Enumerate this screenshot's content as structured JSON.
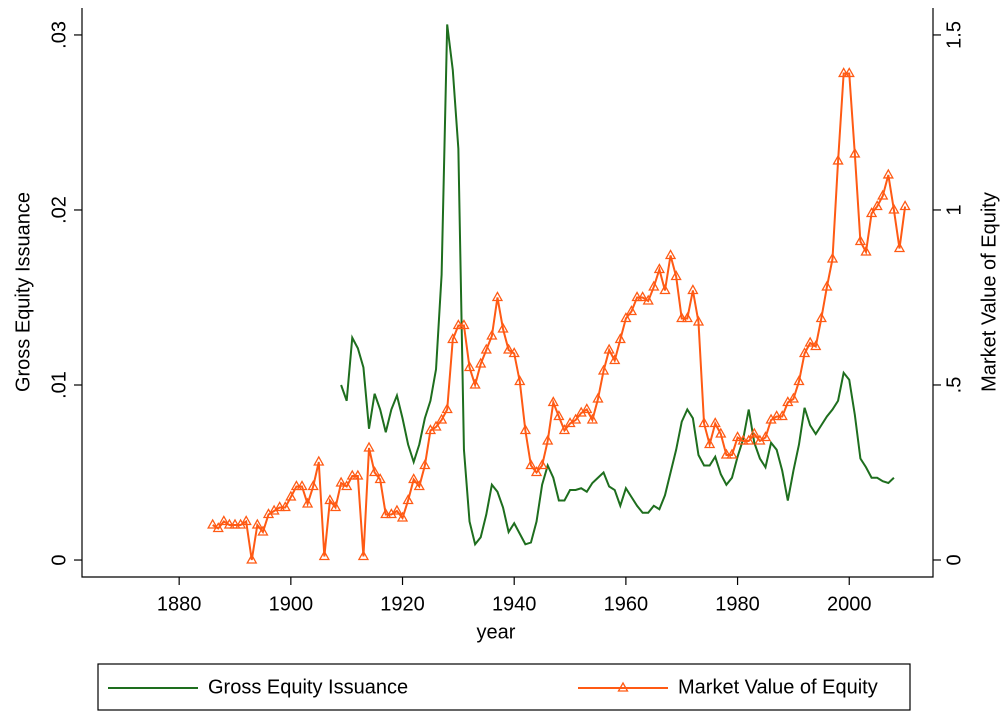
{
  "chart_data": {
    "type": "line",
    "x_label": "year",
    "y_label": "Gross Equity Issuance",
    "y2_label": "Market Value of Equity",
    "xlim": [
      1862.6,
      2015
    ],
    "xticks": [
      1880,
      1900,
      1920,
      1940,
      1960,
      1980,
      2000
    ],
    "ylim": [
      -0.00097,
      0.03154
    ],
    "yticks": [
      0,
      {
        "value": 0.01,
        "label": ".01"
      },
      {
        "value": 0.02,
        "label": ".02"
      },
      {
        "value": 0.03,
        "label": ".03"
      }
    ],
    "y2lim": [
      -0.0486,
      1.577
    ],
    "y2ticks": [
      0,
      {
        "value": 0.5,
        "label": ".5"
      },
      1,
      1.5
    ],
    "legend": "bottom",
    "series": [
      {
        "name": "Gross Equity Issuance",
        "color": "#1e6e1e",
        "axis": "y",
        "marker": "none",
        "x": [
          1909,
          1910,
          1911,
          1912,
          1913,
          1914,
          1915,
          1916,
          1917,
          1918,
          1919,
          1920,
          1921,
          1922,
          1923,
          1924,
          1925,
          1926,
          1927,
          1928,
          1929,
          1930,
          1931,
          1932,
          1933,
          1934,
          1935,
          1936,
          1937,
          1938,
          1939,
          1940,
          1941,
          1942,
          1943,
          1944,
          1945,
          1946,
          1947,
          1948,
          1949,
          1950,
          1951,
          1952,
          1953,
          1954,
          1955,
          1956,
          1957,
          1958,
          1959,
          1960,
          1961,
          1962,
          1963,
          1964,
          1965,
          1966,
          1967,
          1968,
          1969,
          1970,
          1971,
          1972,
          1973,
          1974,
          1975,
          1976,
          1977,
          1978,
          1979,
          1980,
          1981,
          1982,
          1983,
          1984,
          1985,
          1986,
          1987,
          1988,
          1989,
          1990,
          1991,
          1992,
          1993,
          1994,
          1995,
          1996,
          1997,
          1998,
          1999,
          2000,
          2001,
          2002,
          2003,
          2004,
          2005,
          2006,
          2007,
          2008
        ],
        "values": [
          0.01,
          0.0091,
          0.0127,
          0.0121,
          0.011,
          0.0075,
          0.0095,
          0.0086,
          0.0073,
          0.0086,
          0.0094,
          0.0081,
          0.0066,
          0.0056,
          0.0066,
          0.0081,
          0.0091,
          0.0109,
          0.0163,
          0.0306,
          0.028,
          0.0235,
          0.0063,
          0.0022,
          0.0009,
          0.0013,
          0.0026,
          0.0043,
          0.0039,
          0.003,
          0.0016,
          0.0021,
          0.0015,
          0.0009,
          0.001,
          0.0022,
          0.0043,
          0.0054,
          0.0047,
          0.0034,
          0.0034,
          0.004,
          0.004,
          0.0041,
          0.0039,
          0.0044,
          0.0047,
          0.005,
          0.0042,
          0.004,
          0.0031,
          0.0041,
          0.0036,
          0.0031,
          0.0027,
          0.0027,
          0.0031,
          0.0029,
          0.0037,
          0.005,
          0.0063,
          0.0079,
          0.0086,
          0.0081,
          0.006,
          0.0054,
          0.0054,
          0.0059,
          0.0049,
          0.0043,
          0.0047,
          0.0059,
          0.0069,
          0.0086,
          0.0067,
          0.0058,
          0.0053,
          0.0067,
          0.0063,
          0.0051,
          0.0034,
          0.0051,
          0.0066,
          0.0087,
          0.0077,
          0.0072,
          0.0077,
          0.0082,
          0.0086,
          0.0091,
          0.0107,
          0.0103,
          0.0083,
          0.0058,
          0.0053,
          0.0047,
          0.0047,
          0.0045,
          0.0044,
          0.0047
        ]
      },
      {
        "name": "Market Value of Equity",
        "color": "#ff5a14",
        "axis": "y2",
        "marker": "triangle",
        "x": [
          1886,
          1887,
          1888,
          1889,
          1890,
          1891,
          1892,
          1893,
          1894,
          1895,
          1896,
          1897,
          1898,
          1899,
          1900,
          1901,
          1902,
          1903,
          1904,
          1905,
          1906,
          1907,
          1908,
          1909,
          1910,
          1911,
          1912,
          1913,
          1914,
          1915,
          1916,
          1917,
          1918,
          1919,
          1920,
          1921,
          1922,
          1923,
          1924,
          1925,
          1926,
          1927,
          1928,
          1929,
          1930,
          1931,
          1932,
          1933,
          1934,
          1935,
          1936,
          1937,
          1938,
          1939,
          1940,
          1941,
          1942,
          1943,
          1944,
          1945,
          1946,
          1947,
          1948,
          1949,
          1950,
          1951,
          1952,
          1953,
          1954,
          1955,
          1956,
          1957,
          1958,
          1959,
          1960,
          1961,
          1962,
          1963,
          1964,
          1965,
          1966,
          1967,
          1968,
          1969,
          1970,
          1971,
          1972,
          1973,
          1974,
          1975,
          1976,
          1977,
          1978,
          1979,
          1980,
          1981,
          1982,
          1983,
          1984,
          1985,
          1986,
          1987,
          1988,
          1989,
          1990,
          1991,
          1992,
          1993,
          1994,
          1995,
          1996,
          1997,
          1998,
          1999,
          2000,
          2001,
          2002,
          2003,
          2004,
          2005,
          2006,
          2007,
          2008,
          2009,
          2010
        ],
        "values": [
          0.1,
          0.09,
          0.11,
          0.1,
          0.1,
          0.1,
          0.11,
          0.0,
          0.1,
          0.08,
          0.13,
          0.14,
          0.15,
          0.15,
          0.18,
          0.21,
          0.21,
          0.16,
          0.21,
          0.28,
          0.01,
          0.17,
          0.15,
          0.22,
          0.21,
          0.24,
          0.24,
          0.01,
          0.32,
          0.25,
          0.23,
          0.13,
          0.13,
          0.14,
          0.12,
          0.17,
          0.23,
          0.21,
          0.27,
          0.37,
          0.38,
          0.4,
          0.43,
          0.63,
          0.67,
          0.67,
          0.55,
          0.5,
          0.56,
          0.6,
          0.64,
          0.75,
          0.66,
          0.6,
          0.59,
          0.51,
          0.37,
          0.27,
          0.25,
          0.27,
          0.34,
          0.45,
          0.41,
          0.37,
          0.39,
          0.4,
          0.42,
          0.43,
          0.4,
          0.46,
          0.54,
          0.6,
          0.57,
          0.63,
          0.69,
          0.71,
          0.75,
          0.75,
          0.74,
          0.78,
          0.83,
          0.77,
          0.87,
          0.81,
          0.69,
          0.69,
          0.77,
          0.68,
          0.39,
          0.33,
          0.39,
          0.36,
          0.3,
          0.3,
          0.35,
          0.34,
          0.34,
          0.36,
          0.34,
          0.35,
          0.4,
          0.41,
          0.41,
          0.45,
          0.46,
          0.51,
          0.59,
          0.62,
          0.61,
          0.69,
          0.78,
          0.86,
          1.14,
          1.39,
          1.39,
          1.16,
          0.91,
          0.88,
          0.99,
          1.01,
          1.04,
          1.1,
          1.0,
          0.89,
          1.01
        ]
      }
    ]
  }
}
